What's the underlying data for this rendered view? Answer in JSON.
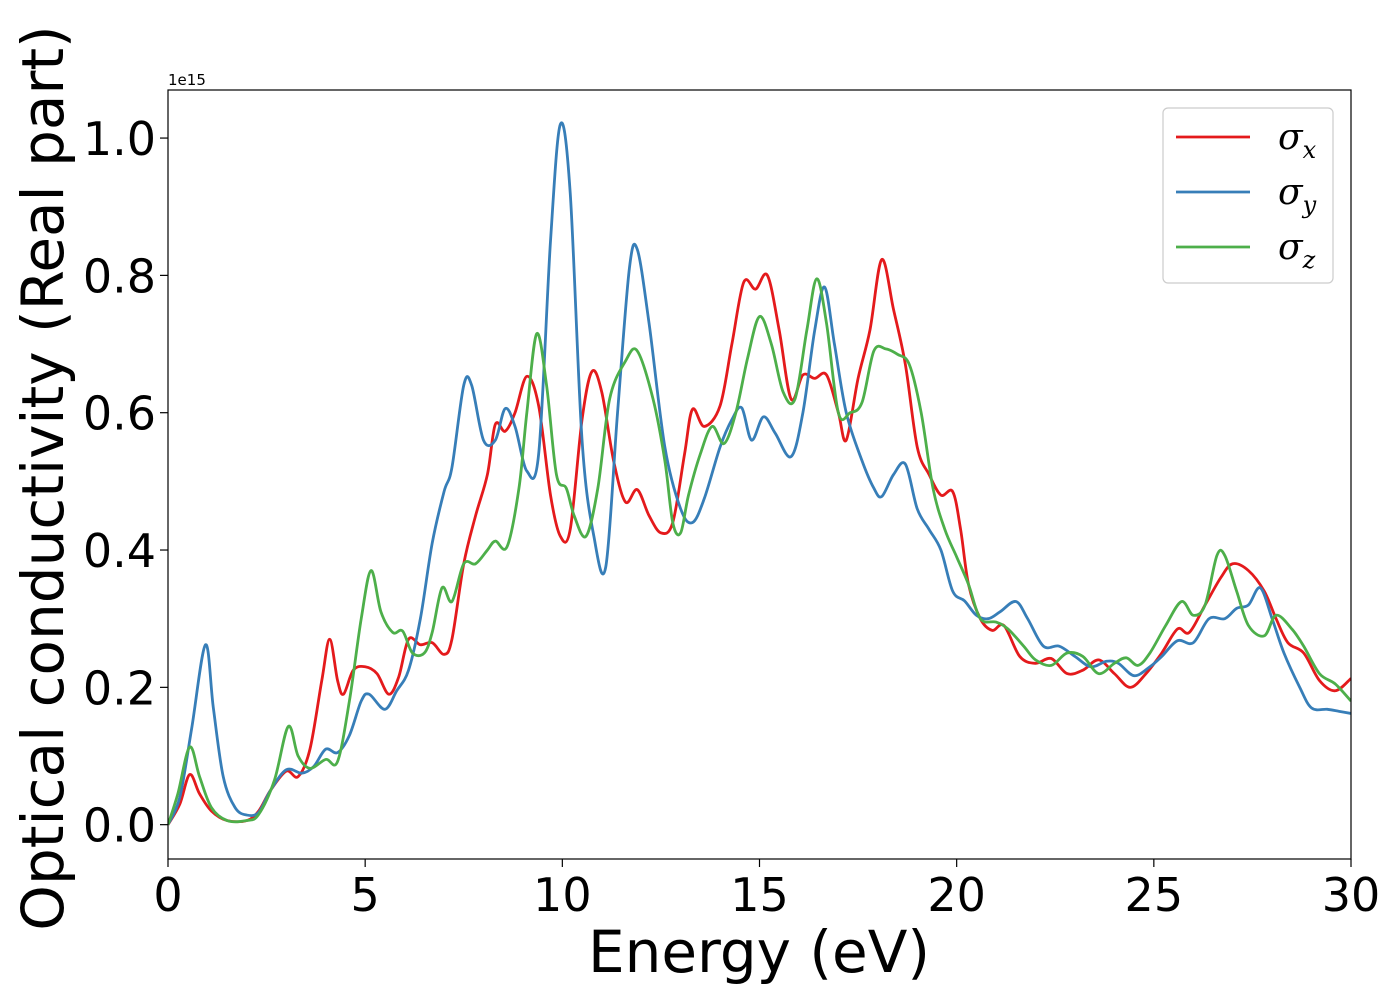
{
  "chart_data": {
    "type": "line",
    "title": "",
    "xlabel": "Energy (eV)",
    "ylabel": "Optical conductivity (Real part)",
    "y_offset_label": "1e15",
    "xlim": [
      0,
      30
    ],
    "ylim": [
      -0.05,
      1.07
    ],
    "xticks": [
      0,
      5,
      10,
      15,
      20,
      25,
      30
    ],
    "xtick_labels": [
      "0",
      "5",
      "10",
      "15",
      "20",
      "25",
      "30"
    ],
    "yticks": [
      0.0,
      0.2,
      0.4,
      0.6,
      0.8,
      1.0
    ],
    "ytick_labels": [
      "0.0",
      "0.2",
      "0.4",
      "0.6",
      "0.8",
      "1.0"
    ],
    "grid": false,
    "legend_position": "top-right",
    "series": [
      {
        "name": "σx",
        "symbol": "σ",
        "subscript": "x",
        "color": "#e41a1c",
        "points": [
          [
            0,
            0
          ],
          [
            0.3,
            0.03
          ],
          [
            0.55,
            0.073
          ],
          [
            0.8,
            0.045
          ],
          [
            1.1,
            0.02
          ],
          [
            1.5,
            0.006
          ],
          [
            2,
            0.006
          ],
          [
            2.3,
            0.02
          ],
          [
            2.6,
            0.05
          ],
          [
            3,
            0.078
          ],
          [
            3.3,
            0.07
          ],
          [
            3.6,
            0.11
          ],
          [
            3.9,
            0.21
          ],
          [
            4.1,
            0.27
          ],
          [
            4.3,
            0.21
          ],
          [
            4.45,
            0.19
          ],
          [
            4.7,
            0.225
          ],
          [
            5,
            0.23
          ],
          [
            5.3,
            0.22
          ],
          [
            5.6,
            0.19
          ],
          [
            5.85,
            0.215
          ],
          [
            6.1,
            0.27
          ],
          [
            6.4,
            0.262
          ],
          [
            6.7,
            0.265
          ],
          [
            7,
            0.248
          ],
          [
            7.2,
            0.27
          ],
          [
            7.5,
            0.38
          ],
          [
            7.8,
            0.45
          ],
          [
            8.1,
            0.51
          ],
          [
            8.3,
            0.583
          ],
          [
            8.55,
            0.573
          ],
          [
            8.8,
            0.6
          ],
          [
            9.1,
            0.653
          ],
          [
            9.4,
            0.61
          ],
          [
            9.7,
            0.48
          ],
          [
            9.95,
            0.42
          ],
          [
            10.2,
            0.43
          ],
          [
            10.5,
            0.59
          ],
          [
            10.75,
            0.66
          ],
          [
            11,
            0.63
          ],
          [
            11.3,
            0.53
          ],
          [
            11.6,
            0.47
          ],
          [
            11.9,
            0.488
          ],
          [
            12.2,
            0.45
          ],
          [
            12.5,
            0.425
          ],
          [
            12.8,
            0.44
          ],
          [
            13.1,
            0.54
          ],
          [
            13.3,
            0.605
          ],
          [
            13.6,
            0.58
          ],
          [
            14,
            0.61
          ],
          [
            14.3,
            0.7
          ],
          [
            14.6,
            0.79
          ],
          [
            14.9,
            0.78
          ],
          [
            15.2,
            0.8
          ],
          [
            15.5,
            0.72
          ],
          [
            15.8,
            0.62
          ],
          [
            16.1,
            0.655
          ],
          [
            16.4,
            0.65
          ],
          [
            16.7,
            0.655
          ],
          [
            17,
            0.6
          ],
          [
            17.2,
            0.56
          ],
          [
            17.5,
            0.65
          ],
          [
            17.8,
            0.72
          ],
          [
            18.1,
            0.823
          ],
          [
            18.4,
            0.75
          ],
          [
            18.7,
            0.67
          ],
          [
            19,
            0.55
          ],
          [
            19.3,
            0.51
          ],
          [
            19.6,
            0.48
          ],
          [
            19.9,
            0.485
          ],
          [
            20.1,
            0.43
          ],
          [
            20.3,
            0.35
          ],
          [
            20.6,
            0.3
          ],
          [
            20.9,
            0.283
          ],
          [
            21.2,
            0.29
          ],
          [
            21.6,
            0.245
          ],
          [
            22,
            0.235
          ],
          [
            22.4,
            0.242
          ],
          [
            22.8,
            0.22
          ],
          [
            23.2,
            0.225
          ],
          [
            23.6,
            0.24
          ],
          [
            24,
            0.22
          ],
          [
            24.4,
            0.2
          ],
          [
            24.8,
            0.22
          ],
          [
            25.2,
            0.25
          ],
          [
            25.6,
            0.285
          ],
          [
            25.9,
            0.28
          ],
          [
            26.3,
            0.32
          ],
          [
            26.7,
            0.36
          ],
          [
            27,
            0.38
          ],
          [
            27.4,
            0.37
          ],
          [
            27.8,
            0.34
          ],
          [
            28.1,
            0.3
          ],
          [
            28.4,
            0.265
          ],
          [
            28.8,
            0.25
          ],
          [
            29.2,
            0.21
          ],
          [
            29.6,
            0.195
          ],
          [
            30,
            0.213
          ]
        ]
      },
      {
        "name": "σy",
        "symbol": "σ",
        "subscript": "y",
        "color": "#377eb8",
        "points": [
          [
            0,
            0
          ],
          [
            0.3,
            0.04
          ],
          [
            0.6,
            0.14
          ],
          [
            0.95,
            0.262
          ],
          [
            1.15,
            0.17
          ],
          [
            1.4,
            0.07
          ],
          [
            1.7,
            0.025
          ],
          [
            2,
            0.014
          ],
          [
            2.3,
            0.018
          ],
          [
            2.6,
            0.05
          ],
          [
            3,
            0.08
          ],
          [
            3.4,
            0.075
          ],
          [
            3.7,
            0.085
          ],
          [
            4,
            0.11
          ],
          [
            4.3,
            0.105
          ],
          [
            4.6,
            0.13
          ],
          [
            4.9,
            0.18
          ],
          [
            5.1,
            0.19
          ],
          [
            5.5,
            0.168
          ],
          [
            5.8,
            0.195
          ],
          [
            6.1,
            0.225
          ],
          [
            6.4,
            0.3
          ],
          [
            6.7,
            0.41
          ],
          [
            7,
            0.485
          ],
          [
            7.2,
            0.52
          ],
          [
            7.5,
            0.64
          ],
          [
            7.7,
            0.64
          ],
          [
            8,
            0.56
          ],
          [
            8.3,
            0.56
          ],
          [
            8.55,
            0.606
          ],
          [
            8.8,
            0.58
          ],
          [
            9.1,
            0.515
          ],
          [
            9.4,
            0.54
          ],
          [
            9.7,
            0.85
          ],
          [
            9.95,
            1.02
          ],
          [
            10.2,
            0.92
          ],
          [
            10.5,
            0.56
          ],
          [
            10.8,
            0.42
          ],
          [
            11.1,
            0.375
          ],
          [
            11.4,
            0.6
          ],
          [
            11.7,
            0.81
          ],
          [
            11.9,
            0.838
          ],
          [
            12.2,
            0.73
          ],
          [
            12.6,
            0.55
          ],
          [
            13,
            0.46
          ],
          [
            13.3,
            0.44
          ],
          [
            13.6,
            0.475
          ],
          [
            14,
            0.55
          ],
          [
            14.3,
            0.59
          ],
          [
            14.55,
            0.607
          ],
          [
            14.8,
            0.56
          ],
          [
            15.1,
            0.594
          ],
          [
            15.4,
            0.57
          ],
          [
            15.8,
            0.536
          ],
          [
            16.1,
            0.6
          ],
          [
            16.4,
            0.72
          ],
          [
            16.65,
            0.783
          ],
          [
            16.9,
            0.7
          ],
          [
            17.2,
            0.6
          ],
          [
            17.6,
            0.53
          ],
          [
            17.9,
            0.49
          ],
          [
            18.1,
            0.478
          ],
          [
            18.4,
            0.51
          ],
          [
            18.7,
            0.525
          ],
          [
            19,
            0.46
          ],
          [
            19.3,
            0.43
          ],
          [
            19.6,
            0.4
          ],
          [
            19.9,
            0.34
          ],
          [
            20.2,
            0.326
          ],
          [
            20.5,
            0.305
          ],
          [
            20.8,
            0.3
          ],
          [
            21.1,
            0.31
          ],
          [
            21.5,
            0.325
          ],
          [
            21.8,
            0.3
          ],
          [
            22.2,
            0.26
          ],
          [
            22.6,
            0.26
          ],
          [
            23,
            0.245
          ],
          [
            23.4,
            0.23
          ],
          [
            23.8,
            0.238
          ],
          [
            24.1,
            0.235
          ],
          [
            24.5,
            0.217
          ],
          [
            24.9,
            0.23
          ],
          [
            25.2,
            0.245
          ],
          [
            25.6,
            0.268
          ],
          [
            26,
            0.265
          ],
          [
            26.4,
            0.3
          ],
          [
            26.8,
            0.3
          ],
          [
            27.1,
            0.315
          ],
          [
            27.4,
            0.32
          ],
          [
            27.7,
            0.345
          ],
          [
            28,
            0.3
          ],
          [
            28.3,
            0.25
          ],
          [
            28.7,
            0.2
          ],
          [
            29,
            0.17
          ],
          [
            29.4,
            0.168
          ],
          [
            29.7,
            0.165
          ],
          [
            30,
            0.162
          ]
        ]
      },
      {
        "name": "σz",
        "symbol": "σ",
        "subscript": "z",
        "color": "#4daf4a",
        "points": [
          [
            0,
            0
          ],
          [
            0.25,
            0.045
          ],
          [
            0.55,
            0.113
          ],
          [
            0.8,
            0.07
          ],
          [
            1.1,
            0.025
          ],
          [
            1.5,
            0.006
          ],
          [
            2,
            0.006
          ],
          [
            2.3,
            0.015
          ],
          [
            2.7,
            0.065
          ],
          [
            3.05,
            0.143
          ],
          [
            3.3,
            0.1
          ],
          [
            3.6,
            0.082
          ],
          [
            4,
            0.095
          ],
          [
            4.3,
            0.092
          ],
          [
            4.6,
            0.18
          ],
          [
            4.9,
            0.3
          ],
          [
            5.15,
            0.37
          ],
          [
            5.4,
            0.31
          ],
          [
            5.7,
            0.28
          ],
          [
            5.95,
            0.282
          ],
          [
            6.2,
            0.25
          ],
          [
            6.5,
            0.25
          ],
          [
            6.7,
            0.28
          ],
          [
            6.95,
            0.345
          ],
          [
            7.2,
            0.325
          ],
          [
            7.5,
            0.38
          ],
          [
            7.8,
            0.38
          ],
          [
            8.1,
            0.4
          ],
          [
            8.3,
            0.413
          ],
          [
            8.6,
            0.405
          ],
          [
            8.9,
            0.49
          ],
          [
            9.1,
            0.6
          ],
          [
            9.35,
            0.715
          ],
          [
            9.6,
            0.64
          ],
          [
            9.85,
            0.51
          ],
          [
            10.1,
            0.49
          ],
          [
            10.3,
            0.45
          ],
          [
            10.6,
            0.42
          ],
          [
            10.9,
            0.49
          ],
          [
            11.2,
            0.62
          ],
          [
            11.6,
            0.675
          ],
          [
            11.9,
            0.69
          ],
          [
            12.3,
            0.62
          ],
          [
            12.6,
            0.53
          ],
          [
            12.8,
            0.44
          ],
          [
            13,
            0.425
          ],
          [
            13.2,
            0.48
          ],
          [
            13.5,
            0.54
          ],
          [
            13.8,
            0.58
          ],
          [
            14.1,
            0.555
          ],
          [
            14.4,
            0.6
          ],
          [
            14.7,
            0.68
          ],
          [
            15,
            0.74
          ],
          [
            15.3,
            0.7
          ],
          [
            15.6,
            0.63
          ],
          [
            15.9,
            0.62
          ],
          [
            16.2,
            0.72
          ],
          [
            16.45,
            0.795
          ],
          [
            16.7,
            0.73
          ],
          [
            17,
            0.6
          ],
          [
            17.3,
            0.6
          ],
          [
            17.6,
            0.615
          ],
          [
            17.9,
            0.69
          ],
          [
            18.2,
            0.693
          ],
          [
            18.5,
            0.685
          ],
          [
            18.8,
            0.67
          ],
          [
            19.1,
            0.6
          ],
          [
            19.4,
            0.49
          ],
          [
            19.7,
            0.43
          ],
          [
            20,
            0.39
          ],
          [
            20.3,
            0.35
          ],
          [
            20.6,
            0.3
          ],
          [
            21,
            0.295
          ],
          [
            21.3,
            0.285
          ],
          [
            21.7,
            0.26
          ],
          [
            22,
            0.24
          ],
          [
            22.4,
            0.232
          ],
          [
            22.8,
            0.25
          ],
          [
            23.2,
            0.245
          ],
          [
            23.6,
            0.22
          ],
          [
            24,
            0.235
          ],
          [
            24.3,
            0.243
          ],
          [
            24.6,
            0.232
          ],
          [
            24.9,
            0.25
          ],
          [
            25.3,
            0.29
          ],
          [
            25.7,
            0.325
          ],
          [
            26,
            0.305
          ],
          [
            26.3,
            0.32
          ],
          [
            26.6,
            0.392
          ],
          [
            26.8,
            0.392
          ],
          [
            27.1,
            0.34
          ],
          [
            27.4,
            0.29
          ],
          [
            27.8,
            0.275
          ],
          [
            28.1,
            0.305
          ],
          [
            28.5,
            0.285
          ],
          [
            28.8,
            0.26
          ],
          [
            29.2,
            0.22
          ],
          [
            29.6,
            0.205
          ],
          [
            30,
            0.18
          ]
        ]
      }
    ]
  }
}
